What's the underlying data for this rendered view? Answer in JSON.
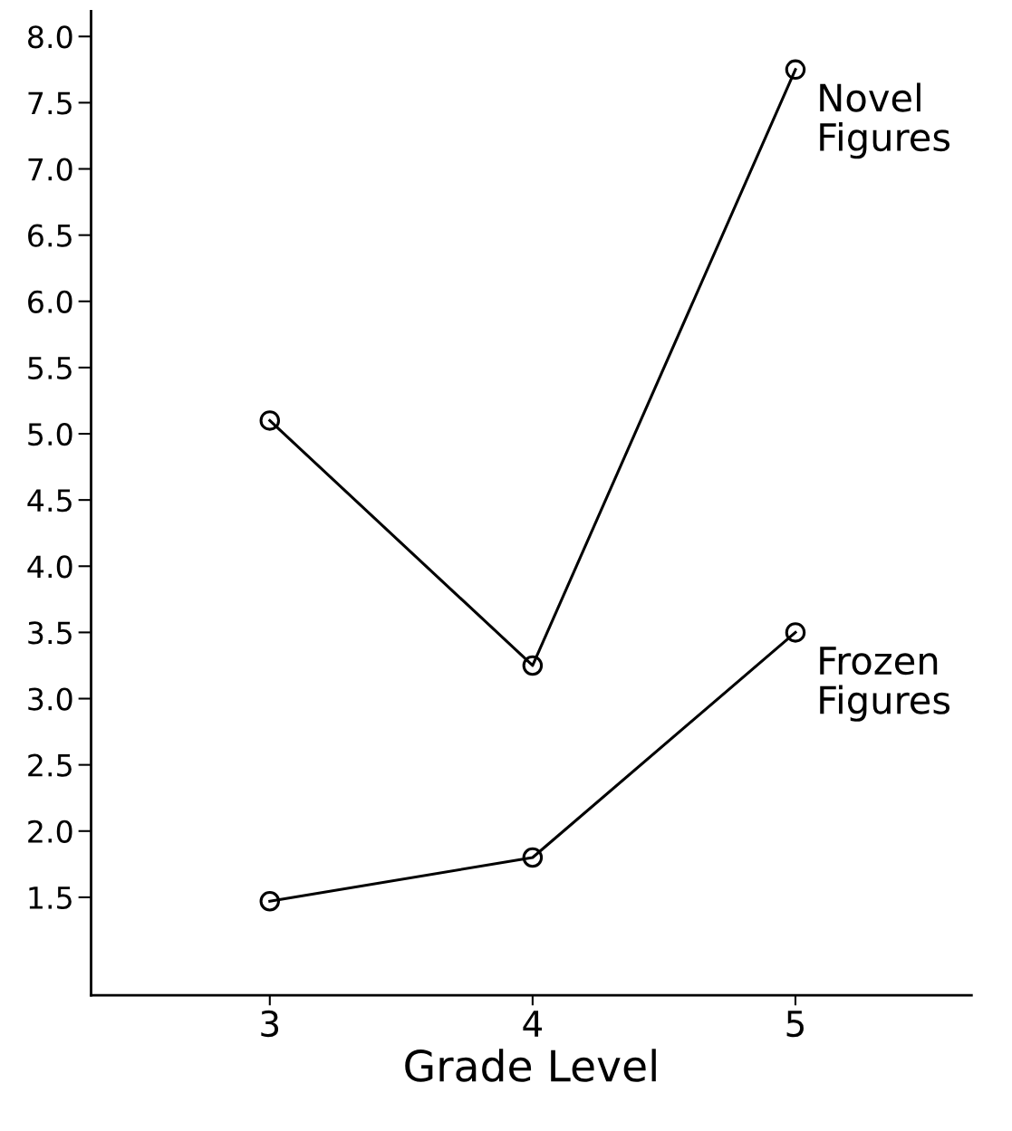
{
  "chart_data": {
    "type": "line",
    "xlabel": "Grade Level",
    "x": [
      3,
      4,
      5
    ],
    "xlim": [
      2.32,
      5.67
    ],
    "xticks": [
      3,
      4,
      5
    ],
    "ylim": [
      0.76,
      8.19
    ],
    "yticks": [
      {
        "value": 8,
        "label": "8.0"
      },
      7.5,
      {
        "value": 7,
        "label": "7.0"
      },
      6.5,
      {
        "value": 6,
        "label": "6.0"
      },
      5.5,
      {
        "value": 5,
        "label": "5.0"
      },
      4.5,
      {
        "value": 4,
        "label": "4.0"
      },
      3.5,
      {
        "value": 3,
        "label": "3.0"
      },
      2.5,
      {
        "value": 2,
        "label": "2.0"
      },
      1.5
    ],
    "series": [
      {
        "name": "Novel Figures",
        "color": "#000000",
        "values": [
          5.1,
          3.25,
          7.75
        ]
      },
      {
        "name": "Frozen Figures",
        "color": "#000000",
        "values": [
          1.47,
          1.8,
          3.5
        ]
      }
    ],
    "marker": "circle",
    "line_style": "solid",
    "grid": false,
    "legend": false
  }
}
